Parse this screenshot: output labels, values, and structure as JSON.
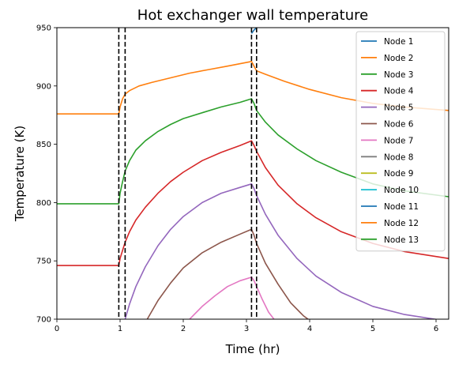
{
  "chart_data": {
    "type": "line",
    "title": "Hot exchanger wall temperature",
    "xlabel": "Time (hr)",
    "ylabel": "Temperature (K)",
    "xlim": [
      0,
      6.2
    ],
    "ylim": [
      700,
      950
    ],
    "xticks": [
      0,
      1,
      2,
      3,
      4,
      5,
      6
    ],
    "yticks": [
      700,
      750,
      800,
      850,
      900,
      950
    ],
    "grid": false,
    "legend_position": "top-right",
    "vlines": [
      {
        "x": 0.98,
        "style": "dashed",
        "color": "#000000"
      },
      {
        "x": 1.08,
        "style": "dashed",
        "color": "#000000"
      },
      {
        "x": 3.08,
        "style": "dashed",
        "color": "#000000"
      },
      {
        "x": 3.16,
        "style": "dashed",
        "color": "#000000"
      }
    ],
    "series": [
      {
        "name": "Node 1",
        "color": "#1f77b4",
        "x": [
          3.08,
          3.12,
          3.16,
          3.22,
          3.3
        ],
        "y": [
          945,
          948,
          950,
          953,
          957
        ]
      },
      {
        "name": "Node 2",
        "color": "#ff7f0e",
        "x": [
          0,
          0.98,
          1.0,
          1.04,
          1.08,
          1.15,
          1.3,
          1.5,
          1.8,
          2.1,
          2.4,
          2.7,
          3.08,
          3.12,
          3.16,
          3.3,
          3.6,
          4.0,
          4.5,
          5.0,
          5.5,
          6.2
        ],
        "y": [
          876,
          876,
          882,
          889,
          893,
          896,
          900,
          903,
          907,
          911,
          914,
          917,
          921,
          917,
          913,
          910,
          904,
          897,
          890,
          885,
          882,
          879
        ]
      },
      {
        "name": "Node 3",
        "color": "#2ca02c",
        "x": [
          0,
          0.98,
          1.0,
          1.04,
          1.08,
          1.15,
          1.25,
          1.4,
          1.6,
          1.8,
          2.0,
          2.3,
          2.6,
          2.9,
          3.08,
          3.12,
          3.16,
          3.3,
          3.5,
          3.8,
          4.1,
          4.5,
          5.0,
          5.5,
          6.2
        ],
        "y": [
          799,
          799,
          808,
          818,
          827,
          836,
          845,
          853,
          861,
          867,
          872,
          877,
          882,
          886,
          889,
          885,
          879,
          869,
          858,
          846,
          836,
          826,
          816,
          810,
          805
        ]
      },
      {
        "name": "Node 4",
        "color": "#d62728",
        "x": [
          0,
          0.98,
          1.0,
          1.04,
          1.08,
          1.15,
          1.25,
          1.4,
          1.6,
          1.8,
          2.0,
          2.3,
          2.6,
          2.9,
          3.08,
          3.12,
          3.16,
          3.3,
          3.5,
          3.8,
          4.1,
          4.5,
          5.0,
          5.5,
          6.2
        ],
        "y": [
          746,
          746,
          752,
          759,
          766,
          775,
          785,
          796,
          808,
          818,
          826,
          836,
          843,
          849,
          853,
          849,
          844,
          830,
          815,
          799,
          787,
          775,
          765,
          758,
          752
        ]
      },
      {
        "name": "Node 5",
        "color": "#9467bd",
        "x": [
          1.08,
          1.15,
          1.25,
          1.4,
          1.6,
          1.8,
          2.0,
          2.3,
          2.6,
          2.9,
          3.08,
          3.12,
          3.16,
          3.3,
          3.5,
          3.8,
          4.1,
          4.5,
          5.0,
          5.5,
          6.1
        ],
        "y": [
          700,
          713,
          728,
          745,
          763,
          777,
          788,
          800,
          808,
          813,
          816,
          812,
          806,
          790,
          772,
          752,
          737,
          723,
          711,
          704,
          699
        ]
      },
      {
        "name": "Node 6",
        "color": "#8c564b",
        "x": [
          1.43,
          1.6,
          1.8,
          2.0,
          2.3,
          2.6,
          2.9,
          3.08,
          3.12,
          3.16,
          3.3,
          3.5,
          3.7,
          3.9,
          4.0
        ],
        "y": [
          700,
          716,
          731,
          744,
          757,
          766,
          773,
          777,
          772,
          765,
          748,
          730,
          714,
          703,
          699
        ]
      },
      {
        "name": "Node 7",
        "color": "#e377c2",
        "x": [
          2.1,
          2.3,
          2.5,
          2.7,
          2.9,
          3.08,
          3.12,
          3.16,
          3.25,
          3.35,
          3.45
        ],
        "y": [
          700,
          711,
          720,
          728,
          733,
          736,
          733,
          728,
          717,
          706,
          699
        ]
      },
      {
        "name": "Node 8",
        "color": "#7f7f7f",
        "x": [],
        "y": []
      },
      {
        "name": "Node 9",
        "color": "#bcbd22",
        "x": [],
        "y": []
      },
      {
        "name": "Node 10",
        "color": "#17becf",
        "x": [],
        "y": []
      },
      {
        "name": "Node 11",
        "color": "#1f77b4",
        "x": [],
        "y": []
      },
      {
        "name": "Node 12",
        "color": "#ff7f0e",
        "x": [],
        "y": []
      },
      {
        "name": "Node 13",
        "color": "#2ca02c",
        "x": [],
        "y": []
      }
    ]
  }
}
